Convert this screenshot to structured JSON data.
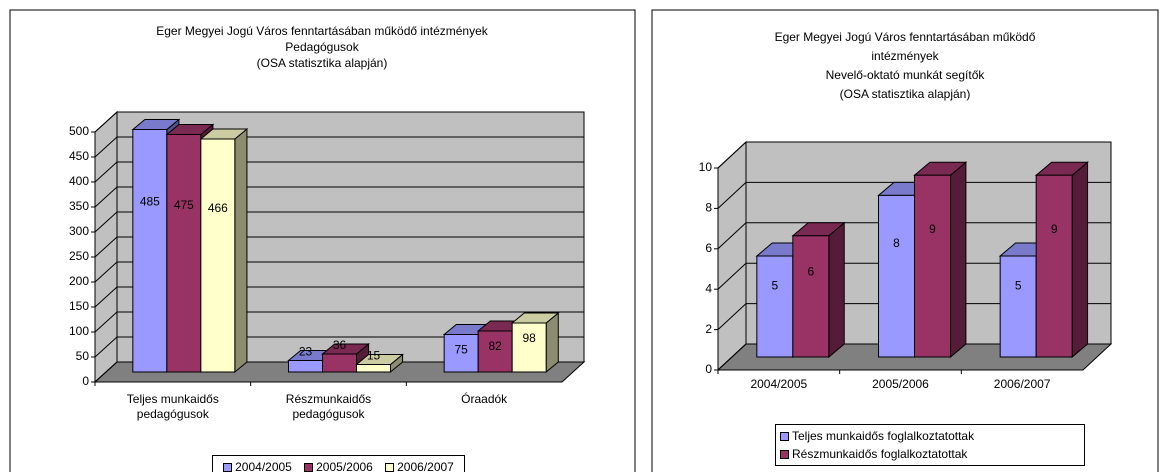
{
  "chart_data": [
    {
      "type": "bar3d",
      "title": [
        "Eger Megyei Jogú Város fenntartásában működő intézmények",
        "Pedagógusok",
        "(OSA statisztika alapján)"
      ],
      "categories": [
        "Teljes munkaidős pedagógusok",
        "Részmunkaidős pedagógusok",
        "Óraadók"
      ],
      "series": [
        {
          "name": "2004/2005",
          "color": "#9999ff",
          "values": [
            485,
            23,
            75
          ]
        },
        {
          "name": "2005/2006",
          "color": "#993366",
          "values": [
            475,
            36,
            82
          ]
        },
        {
          "name": "2006/2007",
          "color": "#ffffcc",
          "values": [
            466,
            15,
            98
          ]
        }
      ],
      "ylim": [
        0,
        500
      ],
      "yticks": [
        0,
        50,
        100,
        150,
        200,
        250,
        300,
        350,
        400,
        450,
        500
      ],
      "grid": true,
      "legend": "bottom"
    },
    {
      "type": "bar3d",
      "title": [
        "Eger Megyei Jogú Város fenntartásában működő",
        "intézmények",
        "Nevelő-oktató munkát segítők",
        "(OSA statisztika alapján)"
      ],
      "categories": [
        "2004/2005",
        "2005/2006",
        "2006/2007"
      ],
      "series": [
        {
          "name": "Teljes munkaidős foglalkoztatottak",
          "color": "#9999ff",
          "values": [
            5,
            8,
            5
          ]
        },
        {
          "name": "Részmunkaidős foglalkoztatottak",
          "color": "#993366",
          "values": [
            6,
            9,
            9
          ]
        }
      ],
      "ylim": [
        0,
        10
      ],
      "yticks": [
        0,
        2,
        4,
        6,
        8,
        10
      ],
      "grid": true,
      "legend": "bottom"
    }
  ]
}
